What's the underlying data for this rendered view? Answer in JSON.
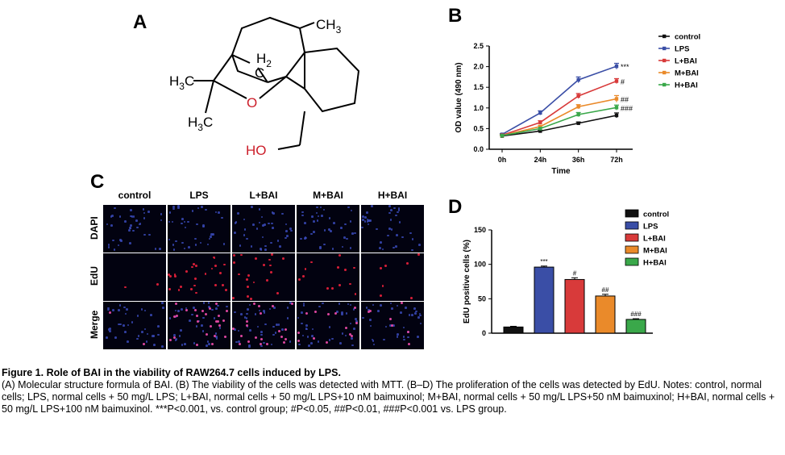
{
  "panels": {
    "a": "A",
    "b": "B",
    "c": "C",
    "d": "D"
  },
  "molecule": {
    "labels": {
      "ch3": "CH",
      "ch3_sub": "3",
      "h2": "H",
      "h2_sub": "2",
      "c": "C",
      "h3c_top": "H",
      "h3c_top_sub": "3",
      "h3c_top_c": "C",
      "h3c_bot": "H",
      "h3c_bot_sub": "3",
      "h3c_bot_c": "C",
      "o": "O",
      "ho": "HO"
    },
    "colors": {
      "bond": "#000000",
      "oxygen": "#cc1e2a"
    }
  },
  "chart_b": {
    "type": "line",
    "xlabel": "Time",
    "ylabel": "OD value (490 nm)",
    "categories": [
      "0h",
      "24h",
      "36h",
      "72h"
    ],
    "ylim": [
      0,
      2.5
    ],
    "yticks": [
      "0.0",
      "0.5",
      "1.0",
      "1.5",
      "2.0",
      "2.5"
    ],
    "legend_position": "top-right",
    "series": [
      {
        "name": "control",
        "color": "#111111",
        "values": [
          0.32,
          0.44,
          0.63,
          0.82
        ],
        "errors": [
          0.02,
          0.02,
          0.03,
          0.06
        ]
      },
      {
        "name": "LPS",
        "color": "#3a4ea6",
        "values": [
          0.36,
          0.88,
          1.68,
          2.01
        ],
        "errors": [
          0.02,
          0.05,
          0.07,
          0.07
        ]
      },
      {
        "name": "L+BAI",
        "color": "#d83a3a",
        "values": [
          0.34,
          0.65,
          1.29,
          1.65
        ],
        "errors": [
          0.02,
          0.04,
          0.06,
          0.06
        ]
      },
      {
        "name": "M+BAI",
        "color": "#ea8a2a",
        "values": [
          0.33,
          0.55,
          1.03,
          1.22
        ],
        "errors": [
          0.02,
          0.03,
          0.05,
          0.08
        ]
      },
      {
        "name": "H+BAI",
        "color": "#3aa84a",
        "values": [
          0.33,
          0.5,
          0.84,
          1.01
        ],
        "errors": [
          0.02,
          0.03,
          0.05,
          0.06
        ]
      }
    ],
    "annotations": [
      "***",
      "#",
      "##",
      "###"
    ]
  },
  "grid": {
    "columns": [
      "control",
      "LPS",
      "L+BAI",
      "M+BAI",
      "H+BAI"
    ],
    "rows": [
      "DAPI",
      "EdU",
      "Merge"
    ],
    "edu_density": [
      0.06,
      0.95,
      0.75,
      0.5,
      0.25
    ]
  },
  "chart_d": {
    "type": "bar",
    "ylabel": "EdU positive cells (%)",
    "categories": [
      "control",
      "LPS",
      "L+BAI",
      "M+BAI",
      "H+BAI"
    ],
    "values": [
      9,
      96,
      78,
      54,
      20
    ],
    "errors": [
      1,
      1.5,
      2.5,
      2.5,
      1
    ],
    "colors": [
      "#111111",
      "#3a4ea6",
      "#d83a3a",
      "#ea8a2a",
      "#3aa84a"
    ],
    "ylim": [
      0,
      150
    ],
    "yticks": [
      "0",
      "50",
      "100",
      "150"
    ],
    "annotations": [
      "",
      "***",
      "#",
      "##",
      "###"
    ],
    "legend_position": "top-right"
  },
  "caption": {
    "title": "Figure 1. Role of BAI in the viability of RAW264.7 cells induced by LPS.",
    "body": "(A) Molecular structure formula of BAI. (B) The viability of the cells was detected with MTT. (B–D) The proliferation of the cells was detected by EdU. Notes: control, normal cells; LPS, normal cells + 50 mg/L LPS; L+BAI, normal cells + 50 mg/L LPS+10 nM baimuxinol; M+BAI, normal cells + 50 mg/L LPS+50 nM baimuxinol; H+BAI, normal cells + 50 mg/L LPS+100 nM baimuxinol. ***P<0.001, vs. control group; #P<0.05, ##P<0.01, ###P<0.001 vs. LPS group."
  }
}
